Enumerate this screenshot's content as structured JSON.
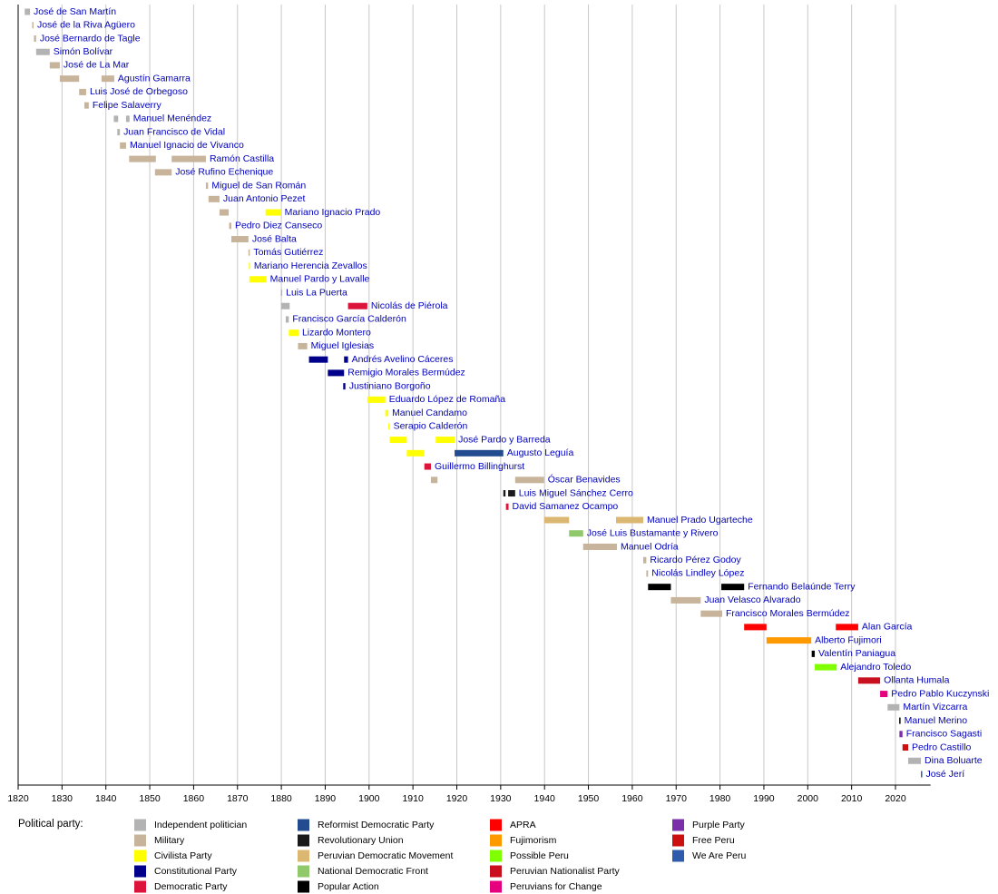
{
  "chart_data": {
    "type": "timeline",
    "xlim": [
      1820,
      2028
    ],
    "xticks": [
      1820,
      1830,
      1840,
      1850,
      1860,
      1870,
      1880,
      1890,
      1900,
      1910,
      1920,
      1930,
      1940,
      1950,
      1960,
      1970,
      1980,
      1990,
      2000,
      2010,
      2020
    ],
    "grid": true,
    "legend_title": "Political party:",
    "parties": [
      {
        "name": "Independent politician",
        "color": "#b3b3b3"
      },
      {
        "name": "Military",
        "color": "#c8b49a"
      },
      {
        "name": "Civilista Party",
        "color": "#ffff00"
      },
      {
        "name": "Constitutional Party",
        "color": "#00008b"
      },
      {
        "name": "Democratic Party",
        "color": "#dc143c"
      },
      {
        "name": "Reformist Democratic Party",
        "color": "#234b8f"
      },
      {
        "name": "Revolutionary Union",
        "color": "#1a1a1a"
      },
      {
        "name": "Peruvian Democratic Movement",
        "color": "#dcb771"
      },
      {
        "name": "National Democratic Front",
        "color": "#90c86c"
      },
      {
        "name": "Popular Action",
        "color": "#000000"
      },
      {
        "name": "APRA",
        "color": "#ff0000"
      },
      {
        "name": "Fujimorism",
        "color": "#ff9900"
      },
      {
        "name": "Possible Peru",
        "color": "#80ff00"
      },
      {
        "name": "Peruvian Nationalist Party",
        "color": "#c8101e"
      },
      {
        "name": "Peruvians for Change",
        "color": "#e6007e"
      },
      {
        "name": "Purple Party",
        "color": "#7b2fa8"
      },
      {
        "name": "Free Peru",
        "color": "#cc1010"
      },
      {
        "name": "We Are Peru",
        "color": "#2e5bab"
      }
    ],
    "rows": [
      {
        "name": "José de San Martín",
        "terms": [
          {
            "start": 1821.5,
            "end": 1822.7,
            "party": "Independent politician"
          }
        ]
      },
      {
        "name": "José de la Riva Agüero",
        "terms": [
          {
            "start": 1823.2,
            "end": 1823.5,
            "party": "Military"
          }
        ]
      },
      {
        "name": "José Bernardo de Tagle",
        "terms": [
          {
            "start": 1823.6,
            "end": 1824.1,
            "party": "Military"
          }
        ]
      },
      {
        "name": "Simón Bolívar",
        "terms": [
          {
            "start": 1824.1,
            "end": 1827.2,
            "party": "Independent politician"
          }
        ]
      },
      {
        "name": "José de La Mar",
        "terms": [
          {
            "start": 1827.2,
            "end": 1829.5,
            "party": "Military"
          }
        ]
      },
      {
        "name": "Agustín Gamarra",
        "terms": [
          {
            "start": 1829.5,
            "end": 1833.9,
            "party": "Military"
          },
          {
            "start": 1839,
            "end": 1841.9,
            "party": "Military"
          }
        ]
      },
      {
        "name": "Luis José de Orbegoso",
        "terms": [
          {
            "start": 1833.9,
            "end": 1835.5,
            "party": "Military"
          }
        ]
      },
      {
        "name": "Felipe Salaverry",
        "terms": [
          {
            "start": 1835.1,
            "end": 1836.1,
            "party": "Military"
          }
        ]
      },
      {
        "name": "Manuel Menéndez",
        "terms": [
          {
            "start": 1841.8,
            "end": 1842.8,
            "party": "Independent politician"
          },
          {
            "start": 1844.6,
            "end": 1845.4,
            "party": "Independent politician"
          }
        ]
      },
      {
        "name": "Juan Francisco de Vidal",
        "terms": [
          {
            "start": 1842.6,
            "end": 1843.2,
            "party": "Independent politician"
          }
        ]
      },
      {
        "name": "Manuel Ignacio de Vivanco",
        "terms": [
          {
            "start": 1843.2,
            "end": 1844.6,
            "party": "Military"
          }
        ]
      },
      {
        "name": "Ramón Castilla",
        "terms": [
          {
            "start": 1845.3,
            "end": 1851.4,
            "party": "Military"
          },
          {
            "start": 1855,
            "end": 1862.8,
            "party": "Military"
          }
        ]
      },
      {
        "name": "José Rufino Echenique",
        "terms": [
          {
            "start": 1851.2,
            "end": 1855,
            "party": "Military"
          }
        ]
      },
      {
        "name": "Miguel de San Román",
        "terms": [
          {
            "start": 1862.8,
            "end": 1863.3,
            "party": "Military"
          }
        ]
      },
      {
        "name": "Juan Antonio Pezet",
        "terms": [
          {
            "start": 1863.4,
            "end": 1865.9,
            "party": "Military"
          }
        ]
      },
      {
        "name": "Mariano Ignacio Prado",
        "terms": [
          {
            "start": 1865.9,
            "end": 1868,
            "party": "Military"
          },
          {
            "start": 1876.4,
            "end": 1879.9,
            "party": "Civilista Party"
          }
        ]
      },
      {
        "name": "Pedro Diez Canseco",
        "terms": [
          {
            "start": 1868.1,
            "end": 1868.6,
            "party": "Military"
          }
        ]
      },
      {
        "name": "José Balta",
        "terms": [
          {
            "start": 1868.6,
            "end": 1872.5,
            "party": "Military"
          }
        ]
      },
      {
        "name": "Tomás Gutiérrez",
        "terms": [
          {
            "start": 1872.5,
            "end": 1872.65,
            "party": "Military"
          }
        ]
      },
      {
        "name": "Mariano Herencia Zevallos",
        "terms": [
          {
            "start": 1872.6,
            "end": 1872.75,
            "party": "Civilista Party"
          }
        ]
      },
      {
        "name": "Manuel Pardo y Lavalle",
        "terms": [
          {
            "start": 1872.7,
            "end": 1876.6,
            "party": "Civilista Party"
          }
        ]
      },
      {
        "name": "Luis La Puerta",
        "terms": [
          {
            "start": 1879.9,
            "end": 1879.95,
            "party": "Independent politician"
          }
        ]
      },
      {
        "name": "Nicolás de Piérola",
        "terms": [
          {
            "start": 1879.95,
            "end": 1881.9,
            "party": "Independent politician"
          },
          {
            "start": 1895.2,
            "end": 1899.6,
            "party": "Democratic Party"
          }
        ]
      },
      {
        "name": "Francisco García Calderón",
        "terms": [
          {
            "start": 1881,
            "end": 1881.7,
            "party": "Independent politician"
          }
        ]
      },
      {
        "name": "Lizardo Montero",
        "terms": [
          {
            "start": 1881.7,
            "end": 1883.9,
            "party": "Civilista Party"
          }
        ]
      },
      {
        "name": "Miguel Iglesias",
        "terms": [
          {
            "start": 1883.8,
            "end": 1885.9,
            "party": "Military"
          }
        ]
      },
      {
        "name": "Andrés Avelino Cáceres",
        "terms": [
          {
            "start": 1886.3,
            "end": 1890.6,
            "party": "Constitutional Party"
          },
          {
            "start": 1894.3,
            "end": 1895.2,
            "party": "Constitutional Party"
          }
        ]
      },
      {
        "name": "Remigio Morales Bermúdez",
        "terms": [
          {
            "start": 1890.6,
            "end": 1894.3,
            "party": "Constitutional Party"
          }
        ]
      },
      {
        "name": "Justiniano Borgoño",
        "terms": [
          {
            "start": 1894.1,
            "end": 1894.6,
            "party": "Constitutional Party"
          }
        ]
      },
      {
        "name": "Eduardo López de Romaña",
        "terms": [
          {
            "start": 1899.6,
            "end": 1903.7,
            "party": "Civilista Party"
          }
        ]
      },
      {
        "name": "Manuel Candamo",
        "terms": [
          {
            "start": 1903.7,
            "end": 1904.4,
            "party": "Civilista Party"
          }
        ]
      },
      {
        "name": "Serapio Calderón",
        "terms": [
          {
            "start": 1904.4,
            "end": 1904.7,
            "party": "Civilista Party"
          }
        ]
      },
      {
        "name": "José Pardo y Barreda",
        "terms": [
          {
            "start": 1904.7,
            "end": 1908.6,
            "party": "Civilista Party"
          },
          {
            "start": 1915.2,
            "end": 1919.5,
            "party": "Civilista Party"
          }
        ]
      },
      {
        "name": "Augusto Leguía",
        "terms": [
          {
            "start": 1908.6,
            "end": 1912.6,
            "party": "Civilista Party"
          },
          {
            "start": 1919.5,
            "end": 1930.6,
            "party": "Reformist Democratic Party"
          }
        ]
      },
      {
        "name": "Guillermo Billinghurst",
        "terms": [
          {
            "start": 1912.6,
            "end": 1914.1,
            "party": "Democratic Party"
          }
        ]
      },
      {
        "name": "Óscar Benavides",
        "terms": [
          {
            "start": 1914.1,
            "end": 1915.6,
            "party": "Military"
          },
          {
            "start": 1933.3,
            "end": 1939.9,
            "party": "Military"
          }
        ]
      },
      {
        "name": "Luis Miguel Sánchez Cerro",
        "terms": [
          {
            "start": 1930.6,
            "end": 1931.1,
            "party": "Revolutionary Union"
          },
          {
            "start": 1931.7,
            "end": 1933.3,
            "party": "Revolutionary Union"
          }
        ]
      },
      {
        "name": "David Samanez Ocampo",
        "terms": [
          {
            "start": 1931.2,
            "end": 1931.8,
            "party": "Democratic Party"
          }
        ]
      },
      {
        "name": "Manuel Prado Ugarteche",
        "terms": [
          {
            "start": 1939.9,
            "end": 1945.6,
            "party": "Peruvian Democratic Movement"
          },
          {
            "start": 1956.3,
            "end": 1962.5,
            "party": "Peruvian Democratic Movement"
          }
        ]
      },
      {
        "name": "José Luis Bustamante y Rivero",
        "terms": [
          {
            "start": 1945.6,
            "end": 1948.8,
            "party": "National Democratic Front"
          }
        ]
      },
      {
        "name": "Manuel Odría",
        "terms": [
          {
            "start": 1948.8,
            "end": 1956.5,
            "party": "Military"
          }
        ]
      },
      {
        "name": "Ricardo Pérez Godoy",
        "terms": [
          {
            "start": 1962.5,
            "end": 1963.2,
            "party": "Military"
          }
        ]
      },
      {
        "name": "Nicolás Lindley López",
        "terms": [
          {
            "start": 1963.2,
            "end": 1963.6,
            "party": "Military"
          }
        ]
      },
      {
        "name": "Fernando Belaúnde Terry",
        "terms": [
          {
            "start": 1963.6,
            "end": 1968.8,
            "party": "Popular Action"
          },
          {
            "start": 1980.3,
            "end": 1985.5,
            "party": "Popular Action"
          }
        ]
      },
      {
        "name": "Juan Velasco Alvarado",
        "terms": [
          {
            "start": 1968.8,
            "end": 1975.6,
            "party": "Military"
          }
        ]
      },
      {
        "name": "Francisco Morales Bermúdez",
        "terms": [
          {
            "start": 1975.6,
            "end": 1980.5,
            "party": "Military"
          }
        ]
      },
      {
        "name": "Alan García",
        "terms": [
          {
            "start": 1985.5,
            "end": 1990.6,
            "party": "APRA"
          },
          {
            "start": 2006.4,
            "end": 2011.5,
            "party": "APRA"
          }
        ]
      },
      {
        "name": "Alberto Fujimori",
        "terms": [
          {
            "start": 1990.6,
            "end": 2000.8,
            "party": "Fujimorism"
          }
        ]
      },
      {
        "name": "Valentín Paniagua",
        "terms": [
          {
            "start": 2000.9,
            "end": 2001.6,
            "party": "Popular Action"
          }
        ]
      },
      {
        "name": "Alejandro Toledo",
        "terms": [
          {
            "start": 2001.6,
            "end": 2006.6,
            "party": "Possible Peru"
          }
        ]
      },
      {
        "name": "Ollanta Humala",
        "terms": [
          {
            "start": 2011.5,
            "end": 2016.5,
            "party": "Peruvian Nationalist Party"
          }
        ]
      },
      {
        "name": "Pedro Pablo Kuczynski",
        "terms": [
          {
            "start": 2016.5,
            "end": 2018.2,
            "party": "Peruvians for Change"
          }
        ]
      },
      {
        "name": "Martín Vizcarra",
        "terms": [
          {
            "start": 2018.2,
            "end": 2020.9,
            "party": "Independent politician"
          }
        ]
      },
      {
        "name": "Manuel Merino",
        "terms": [
          {
            "start": 2020.85,
            "end": 2020.9,
            "party": "Popular Action"
          }
        ]
      },
      {
        "name": "Francisco Sagasti",
        "terms": [
          {
            "start": 2020.9,
            "end": 2021.6,
            "party": "Purple Party"
          }
        ]
      },
      {
        "name": "Pedro Castillo",
        "terms": [
          {
            "start": 2021.6,
            "end": 2022.9,
            "party": "Free Peru"
          }
        ]
      },
      {
        "name": "Dina Boluarte",
        "terms": [
          {
            "start": 2022.9,
            "end": 2025.8,
            "party": "Independent politician"
          }
        ]
      },
      {
        "name": "José Jerí",
        "terms": [
          {
            "start": 2025.8,
            "end": 2025.9,
            "party": "We Are Peru"
          }
        ]
      }
    ]
  }
}
